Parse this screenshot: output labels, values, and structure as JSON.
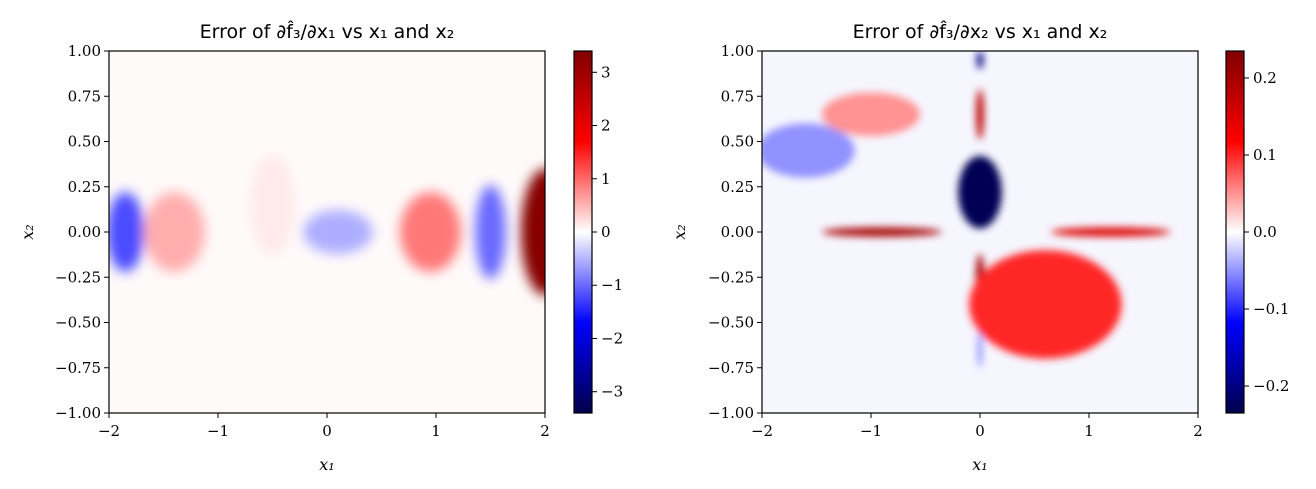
{
  "chart_data": [
    {
      "type": "heatmap",
      "title": "Error of ∂f̂₃/∂x₁ vs x₁ and x₂",
      "xlabel": "x₁",
      "ylabel": "x₂",
      "xlim": [
        -2,
        2
      ],
      "ylim": [
        -1,
        1
      ],
      "xticks": [
        "−2",
        "−1",
        "0",
        "1",
        "2"
      ],
      "yticks": [
        "1.00",
        "0.75",
        "0.50",
        "0.25",
        "0.00",
        "−0.25",
        "−0.50",
        "−0.75",
        "−1.00"
      ],
      "colormap": "seismic",
      "colorbar_range": [
        -3.4,
        3.4
      ],
      "colorbar_ticks": [
        "3",
        "2",
        "1",
        "0",
        "−1",
        "−2",
        "−3"
      ],
      "colorbar_tick_values": [
        3,
        2,
        1,
        0,
        -1,
        -2,
        -3
      ],
      "features": [
        {
          "x": -1.85,
          "y": 0.0,
          "value": -1.2
        },
        {
          "x": -1.4,
          "y": 0.0,
          "value": 0.55
        },
        {
          "x": -0.5,
          "y": 0.15,
          "value": 0.15
        },
        {
          "x": 0.1,
          "y": 0.0,
          "value": -0.55
        },
        {
          "x": 0.95,
          "y": 0.0,
          "value": 0.9
        },
        {
          "x": 1.5,
          "y": 0.0,
          "value": -1.0
        },
        {
          "x": 2.0,
          "y": 0.0,
          "value": 3.3
        }
      ]
    },
    {
      "type": "heatmap",
      "title": "Error of ∂f̂₃/∂x₂ vs x₁ and x₂",
      "xlabel": "x₁",
      "ylabel": "x₂",
      "xlim": [
        -2,
        2
      ],
      "ylim": [
        -1,
        1
      ],
      "xticks": [
        "−2",
        "−1",
        "0",
        "1",
        "2"
      ],
      "yticks": [
        "1.00",
        "0.75",
        "0.50",
        "0.25",
        "0.00",
        "−0.25",
        "−0.50",
        "−0.75",
        "−1.00"
      ],
      "colormap": "seismic",
      "colorbar_range": [
        -0.235,
        0.235
      ],
      "colorbar_ticks": [
        "0.2",
        "0.1",
        "0.0",
        "−0.1",
        "−0.2"
      ],
      "colorbar_tick_values": [
        0.2,
        0.1,
        0.0,
        -0.1,
        -0.2
      ],
      "features": [
        {
          "x": -0.9,
          "y": 0.0,
          "value": 0.2
        },
        {
          "x": 1.2,
          "y": 0.0,
          "value": 0.15
        },
        {
          "x": 0.0,
          "y": 0.22,
          "value": -0.23
        },
        {
          "x": 0.0,
          "y": 0.65,
          "value": 0.18
        },
        {
          "x": 0.0,
          "y": -0.28,
          "value": 0.2
        },
        {
          "x": 0.0,
          "y": 0.95,
          "value": -0.2
        },
        {
          "x": 0.0,
          "y": -0.65,
          "value": -0.06
        },
        {
          "x": 0.6,
          "y": -0.4,
          "value": 0.1
        },
        {
          "x": -1.6,
          "y": 0.45,
          "value": -0.05
        },
        {
          "x": -1.0,
          "y": 0.65,
          "value": 0.05
        }
      ]
    }
  ]
}
